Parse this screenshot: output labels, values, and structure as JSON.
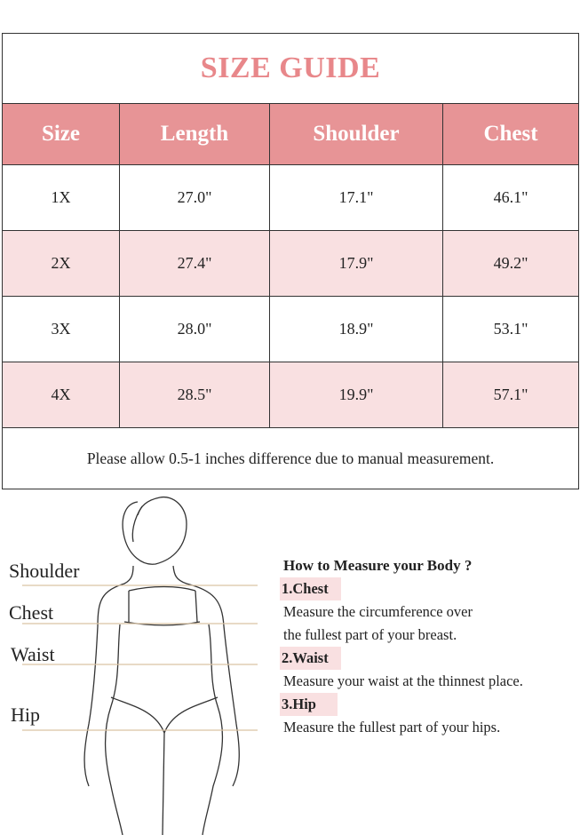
{
  "title": "SIZE GUIDE",
  "table": {
    "headers": [
      "Size",
      "Length",
      "Shoulder",
      "Chest"
    ],
    "rows": [
      [
        "1X",
        "27.0\"",
        "17.1\"",
        "46.1\""
      ],
      [
        "2X",
        "27.4\"",
        "17.9\"",
        "49.2\""
      ],
      [
        "3X",
        "28.0\"",
        "18.9\"",
        "53.1\""
      ],
      [
        "4X",
        "28.5\"",
        "19.9\"",
        "57.1\""
      ]
    ],
    "note": "Please allow 0.5-1 inches difference due to manual measurement."
  },
  "colors": {
    "header_bg": "#e79496",
    "title": "#e8878a",
    "stripe": "#f9e0e1",
    "guide_line": "#d9c3a5"
  },
  "figure": {
    "labels": [
      "Shoulder",
      "Chest",
      "Waist",
      "Hip"
    ]
  },
  "howto": {
    "heading": "How to Measure your Body ?",
    "steps": [
      {
        "title": "1.Chest",
        "lines": [
          "Measure the circumference over",
          "the fullest part of your breast."
        ]
      },
      {
        "title": "2.Waist",
        "lines": [
          "Measure your waist at the thinnest place."
        ]
      },
      {
        "title": "3.Hip",
        "lines": [
          "Measure the fullest part of your hips."
        ]
      }
    ]
  }
}
